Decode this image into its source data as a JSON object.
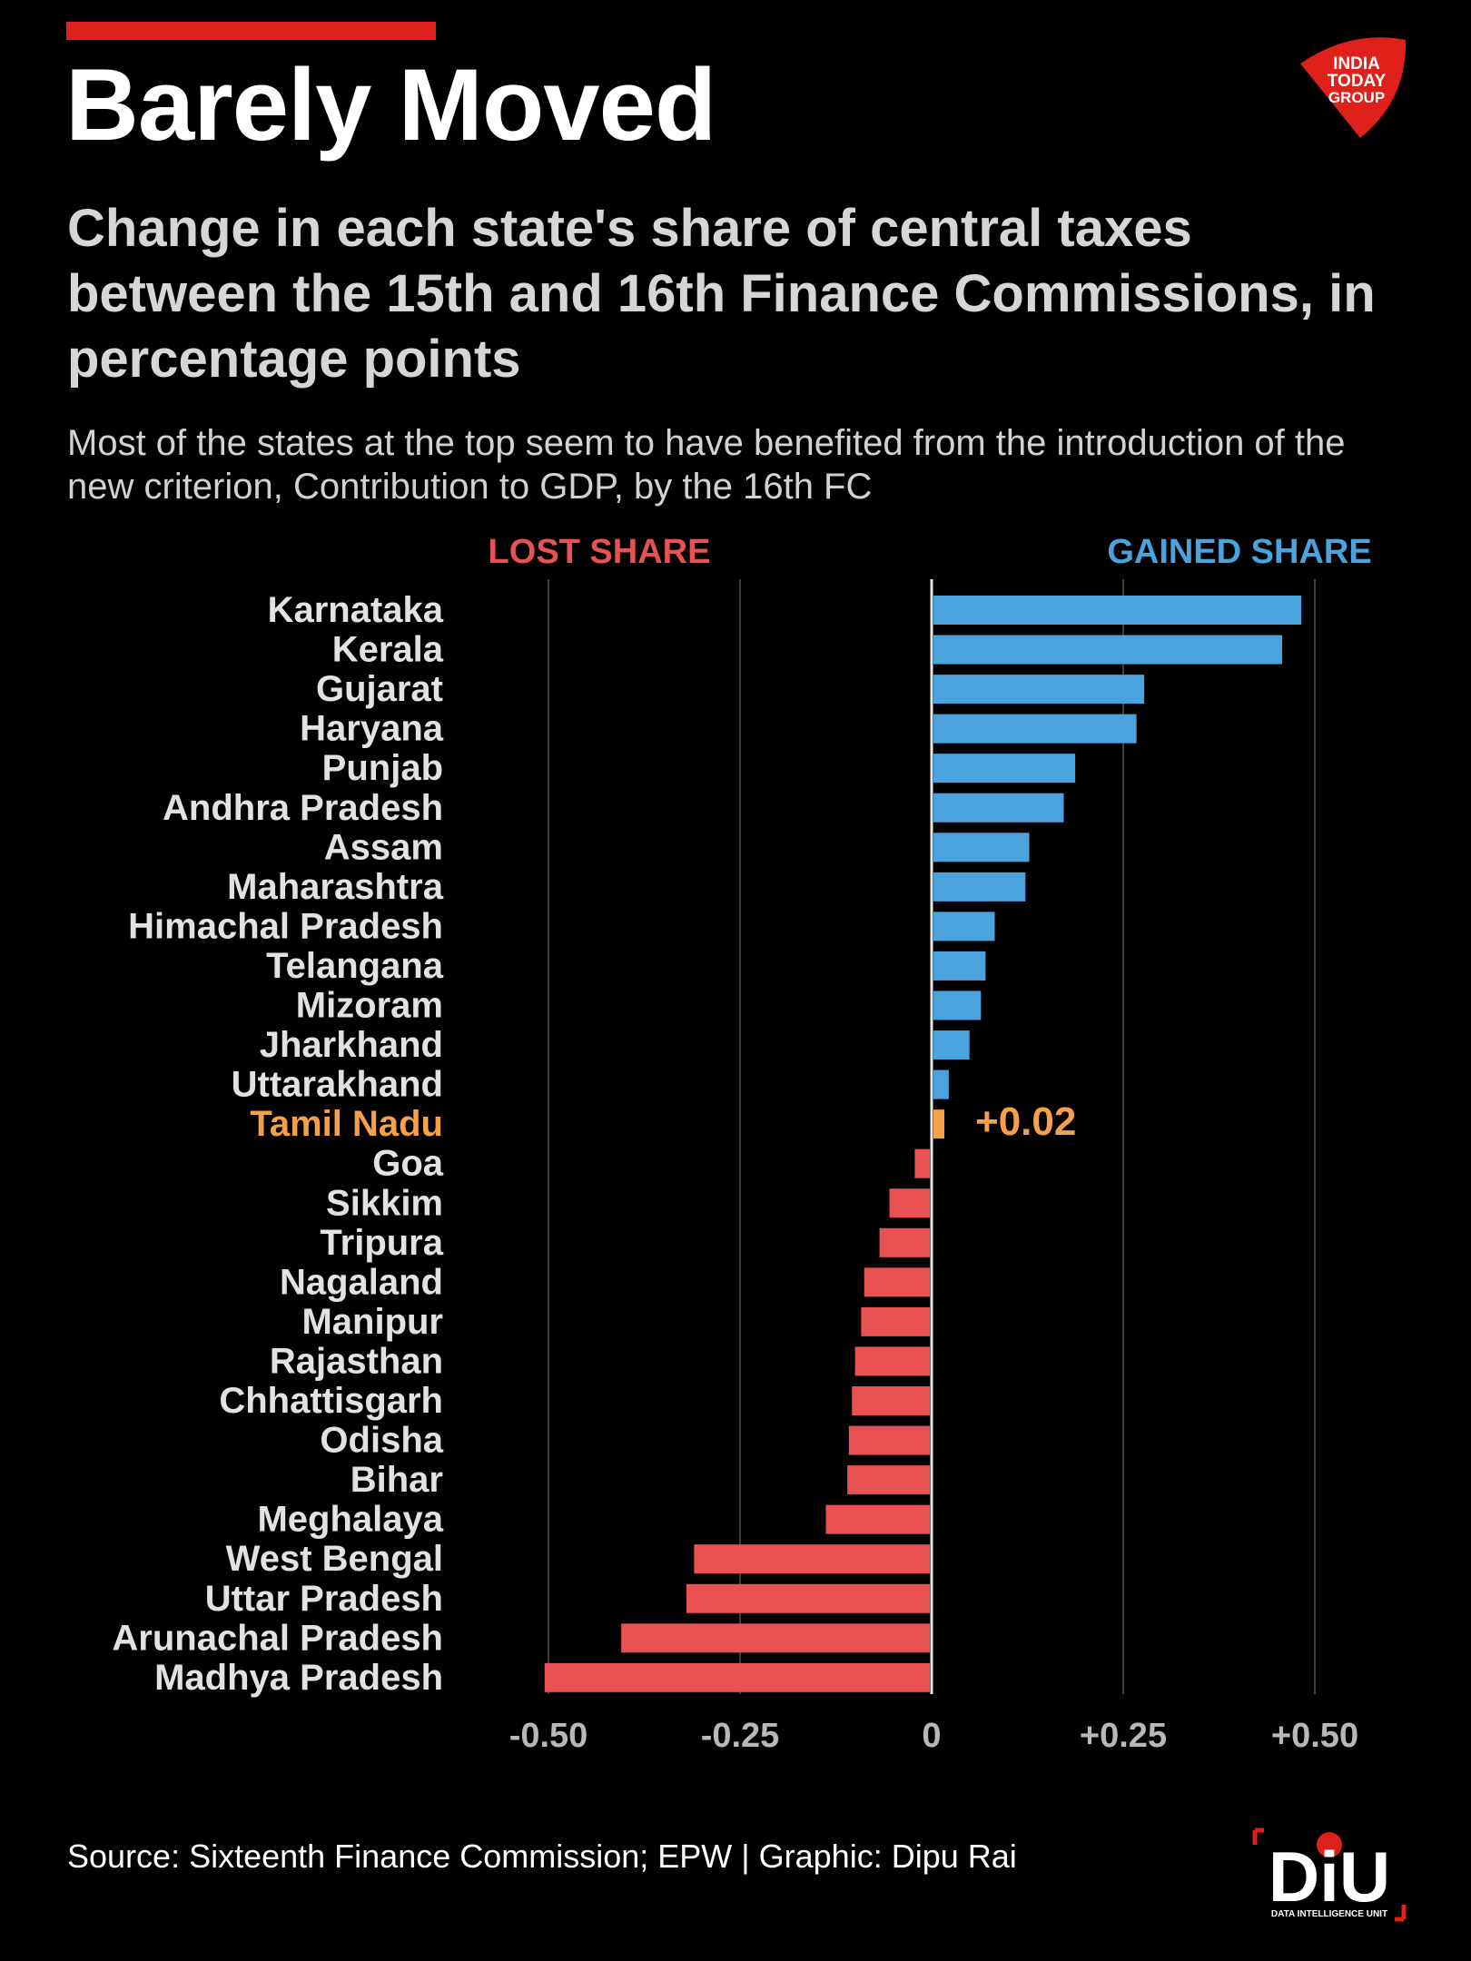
{
  "title": "Barely Moved",
  "subtitle": "Change in each state's share of central taxes between the 15th and 16th Finance Commissions, in percentage points",
  "dek": "Most of the states at the top seem to have benefited from the introduction of the new criterion, Contribution to GDP, by the 16th FC",
  "logo_text": [
    "INDIA",
    "TODAY",
    "GROUP"
  ],
  "source": "Source: Sixteenth Finance Commission; EPW | Graphic: Dipu Rai",
  "diu_logo": {
    "mark": "DiU",
    "caption": "DATA INTELLIGENCE UNIT"
  },
  "colors": {
    "gain": "#4aa3dd",
    "loss": "#e85252",
    "highlight": "#f5a04a",
    "label": "#e2e2e2",
    "tick": "#b8b8b8",
    "accent_red": "#e0201b"
  },
  "chart_data": {
    "type": "bar",
    "orientation": "horizontal",
    "header_left": "LOST SHARE",
    "header_right": "GAINED SHARE",
    "categories": [
      "Karnataka",
      "Kerala",
      "Gujarat",
      "Haryana",
      "Punjab",
      "Andhra Pradesh",
      "Assam",
      "Maharashtra",
      "Himachal Pradesh",
      "Telangana",
      "Mizoram",
      "Jharkhand",
      "Uttarakhand",
      "Tamil Nadu",
      "Goa",
      "Sikkim",
      "Tripura",
      "Nagaland",
      "Manipur",
      "Rajasthan",
      "Chhattisgarh",
      "Odisha",
      "Bihar",
      "Meghalaya",
      "West Bengal",
      "Uttar Pradesh",
      "Arunachal Pradesh",
      "Madhya Pradesh"
    ],
    "values": [
      0.48,
      0.455,
      0.275,
      0.265,
      0.185,
      0.17,
      0.125,
      0.12,
      0.08,
      0.068,
      0.062,
      0.047,
      0.02,
      0.02,
      -0.022,
      -0.055,
      -0.068,
      -0.088,
      -0.092,
      -0.1,
      -0.104,
      -0.108,
      -0.11,
      -0.138,
      -0.31,
      -0.32,
      -0.405,
      -0.505
    ],
    "highlight": {
      "category": "Tamil Nadu",
      "label": "+0.02"
    },
    "xlim": [
      -0.5,
      0.5
    ],
    "xticks": [
      -0.5,
      -0.25,
      0,
      0.25,
      0.5
    ],
    "xtick_labels": [
      "-0.50",
      "-0.25",
      "0",
      "+0.25",
      "+0.50"
    ],
    "grid": true
  }
}
